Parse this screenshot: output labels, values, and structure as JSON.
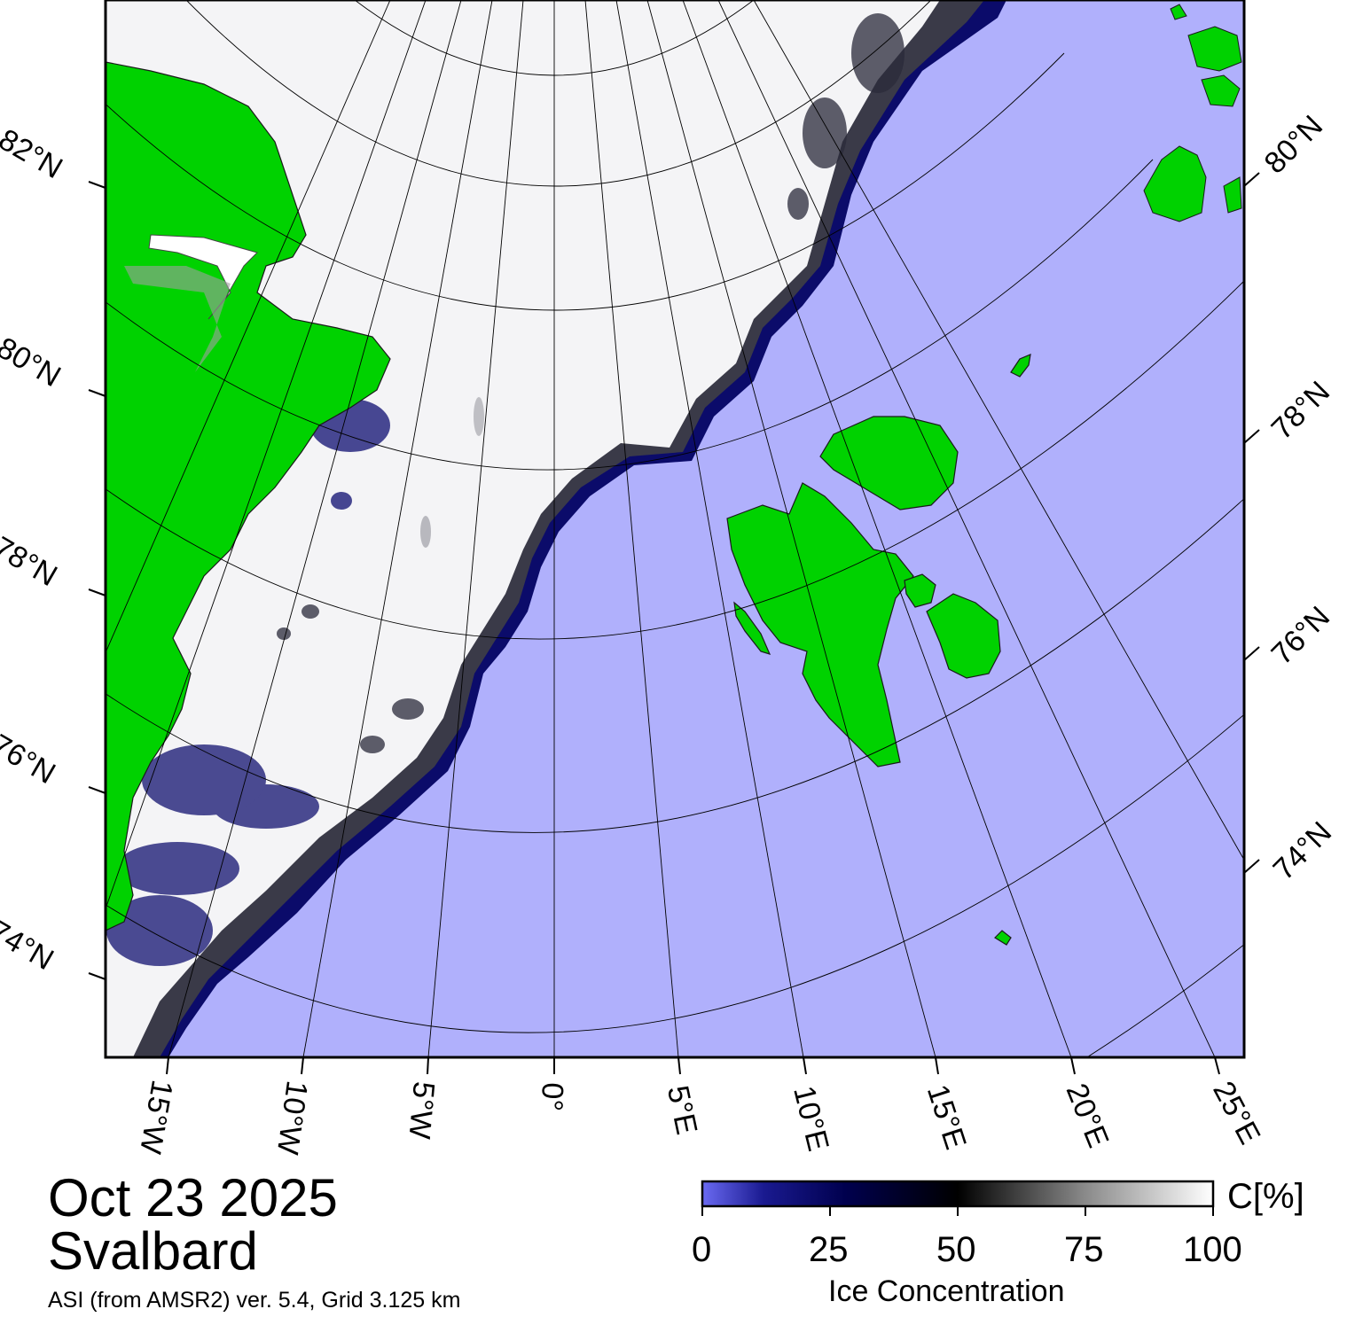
{
  "map": {
    "date": "Oct 23 2025",
    "region": "Svalbard",
    "product": "ASI (from AMSR2) ver. 5.4,  Grid 3.125 km",
    "left_lat_labels": [
      "82°N",
      "80°N",
      "78°N",
      "76°N",
      "74°N"
    ],
    "right_lat_labels": [
      "80°N",
      "78°N",
      "76°N",
      "74°N"
    ],
    "lon_labels": [
      "15°W",
      "10°W",
      "5°W",
      "0°",
      "5°E",
      "10°E",
      "15°E",
      "20°E",
      "25°E"
    ],
    "colors": {
      "open_water": "#b0b0fc",
      "land": "#00d200",
      "ice_full": "#ffffff",
      "ice_low": "#00005a",
      "coast": "#1a1a1a"
    }
  },
  "colorbar": {
    "unit": "C[%]",
    "title": "Ice Concentration",
    "ticks": [
      "0",
      "25",
      "50",
      "75",
      "100"
    ],
    "stops": [
      "#6060f0",
      "#00004a",
      "#000000",
      "#808080",
      "#ffffff"
    ]
  }
}
